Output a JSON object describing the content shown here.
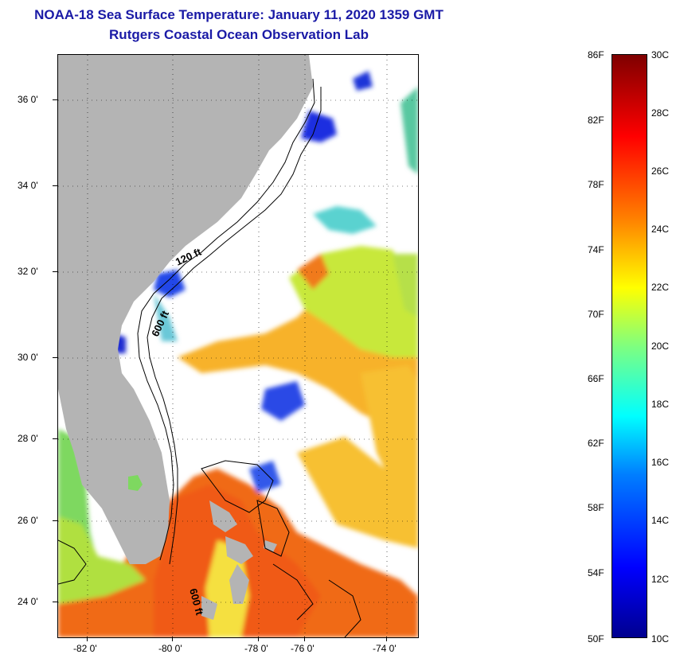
{
  "title": {
    "line1": "NOAA-18 Sea Surface Temperature:  January 11, 2020 1359 GMT",
    "line2": "Rutgers Coastal Ocean Observation Lab"
  },
  "map": {
    "lat_labels": [
      "36 0'",
      "34 0'",
      "32 0'",
      "30 0'",
      "28 0'",
      "26 0'",
      "24 0'"
    ],
    "lon_labels": [
      "-82 0'",
      "-80 0'",
      "-78 0'",
      "-76 0'",
      "-74 0'"
    ],
    "contour_labels": [
      "120 ft",
      "600 ft",
      "600 ft"
    ],
    "colors": {
      "land": "#b4b4b4",
      "cloud": "#ffffff",
      "contour": "#000000"
    }
  },
  "colorbar": {
    "fahrenheit_labels": [
      "86F",
      "82F",
      "78F",
      "74F",
      "70F",
      "66F",
      "62F",
      "58F",
      "54F",
      "50F"
    ],
    "celsius_labels": [
      "30C",
      "28C",
      "26C",
      "24C",
      "22C",
      "20C",
      "18C",
      "16C",
      "14C",
      "12C",
      "10C"
    ],
    "range_c": [
      10,
      30
    ],
    "range_f": [
      50,
      86
    ],
    "colormap": [
      "#00008f",
      "#0000ff",
      "#007fff",
      "#00ffff",
      "#7fff7f",
      "#ffff00",
      "#ff7f00",
      "#ff0000",
      "#7f0000"
    ]
  }
}
